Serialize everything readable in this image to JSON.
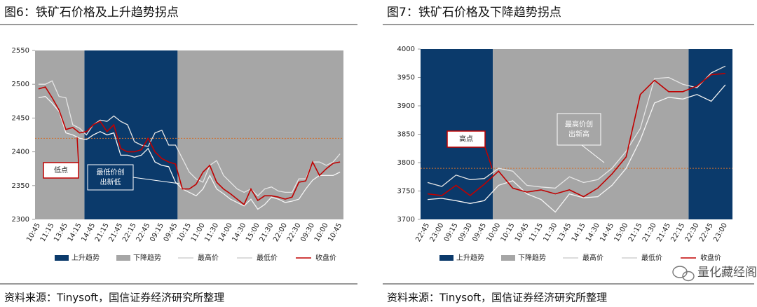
{
  "chart_data": [
    {
      "type": "line",
      "title": "图6：铁矿石价格及上升趋势拐点",
      "source": "资料来源：Tinysoft，国信证券经济研究所整理",
      "categories": [
        "10:45",
        null,
        "11:15",
        null,
        "13:45",
        null,
        "14:15",
        null,
        "14:45",
        null,
        "21:15",
        null,
        "21:45",
        null,
        "22:15",
        null,
        "22:45",
        null,
        "09:15",
        null,
        "09:45",
        null,
        "10:15",
        null,
        "11:00",
        null,
        "11:30",
        null,
        "14:00",
        null,
        "14:30",
        null,
        "15:00",
        null,
        "21:30",
        null,
        "22:00",
        null,
        "22:30",
        null,
        "09:30",
        null,
        "10:00",
        null,
        "10:45"
      ],
      "series": [
        {
          "name": "最高价",
          "color": "#e6e6e6",
          "values": [
            2500,
            2500,
            2505,
            2482,
            2480,
            2440,
            2435,
            2425,
            2440,
            2447,
            2445,
            2453,
            2445,
            2440,
            2415,
            2410,
            2408,
            2428,
            2432,
            2410,
            2410,
            2390,
            2370,
            2360,
            2355,
            2380,
            2387,
            2365,
            2355,
            2345,
            2340,
            2345,
            2335,
            2345,
            2348,
            2342,
            2340,
            2340,
            2360,
            2360,
            2385,
            2385,
            2380,
            2385,
            2397
          ]
        },
        {
          "name": "最低价",
          "color": "#f4f4f4",
          "values": [
            2480,
            2482,
            2472,
            2460,
            2428,
            2425,
            2420,
            2418,
            2425,
            2430,
            2425,
            2428,
            2395,
            2395,
            2392,
            2395,
            2405,
            2385,
            2380,
            2378,
            2355,
            2345,
            2340,
            2335,
            2345,
            2365,
            2345,
            2338,
            2330,
            2325,
            2320,
            2330,
            2315,
            2322,
            2333,
            2330,
            2325,
            2327,
            2330,
            2345,
            2358,
            2365,
            2365,
            2365,
            2370
          ]
        },
        {
          "name": "收盘价",
          "color": "#c00000",
          "values": [
            2493,
            2496,
            2480,
            2462,
            2433,
            2436,
            2428,
            2430,
            2440,
            2445,
            2430,
            2440,
            2405,
            2400,
            2400,
            2403,
            2420,
            2400,
            2390,
            2385,
            2382,
            2345,
            2345,
            2352,
            2370,
            2380,
            2355,
            2345,
            2338,
            2330,
            2322,
            2345,
            2328,
            2335,
            2335,
            2333,
            2330,
            2333,
            2355,
            2357,
            2385,
            2365,
            2375,
            2383,
            2385
          ]
        }
      ],
      "bands": [
        {
          "name": "上升趋势",
          "color": "#0b3a6b",
          "spans": [
            [
              6.7,
              20.3
            ]
          ]
        },
        {
          "name": "下降趋势",
          "color": "#a6a6a6",
          "spans": [
            [
              -0.5,
              6.7
            ],
            [
              20.3,
              44.5
            ]
          ]
        }
      ],
      "reference_line": 2420,
      "reference_color": "#d07030",
      "annotations": [
        {
          "text": "低点",
          "style": "point"
        },
        {
          "lines": [
            "最低价创",
            "出新低"
          ],
          "style": "note"
        }
      ],
      "ylim": [
        2300,
        2550
      ],
      "yticks": [
        2300,
        2350,
        2400,
        2450,
        2500,
        2550
      ]
    },
    {
      "type": "line",
      "title": "图7：铁矿石价格及下降趋势拐点",
      "source": "资料来源：Tinysoft，国信证券经济研究所整理",
      "categories": [
        "22:45",
        "23:00",
        "09:15",
        "09:30",
        "09:45",
        "10:00",
        "10:15",
        "10:45",
        "11:15",
        "11:30",
        "13:45",
        "14:15",
        "14:30",
        "14:45",
        "15:00",
        "21:15",
        "21:30",
        "21:45",
        "22:15",
        "22:30",
        "22:45",
        "23:00"
      ],
      "series": [
        {
          "name": "最高价",
          "color": "#e6e6e6",
          "values": [
            3765,
            3758,
            3778,
            3770,
            3772,
            3790,
            3785,
            3760,
            3757,
            3755,
            3775,
            3765,
            3770,
            3790,
            3820,
            3860,
            3948,
            3950,
            3938,
            3932,
            3958,
            3970
          ]
        },
        {
          "name": "最低价",
          "color": "#f4f4f4",
          "values": [
            3735,
            3737,
            3733,
            3728,
            3733,
            3760,
            3768,
            3745,
            3735,
            3713,
            3745,
            3738,
            3740,
            3760,
            3790,
            3840,
            3905,
            3915,
            3912,
            3920,
            3908,
            3937
          ]
        },
        {
          "name": "收盘价",
          "color": "#c00000",
          "values": [
            3745,
            3742,
            3760,
            3742,
            3762,
            3785,
            3755,
            3748,
            3752,
            3745,
            3752,
            3740,
            3755,
            3780,
            3810,
            3920,
            3945,
            3925,
            3925,
            3935,
            3955,
            3957
          ]
        }
      ],
      "bands": [
        {
          "name": "上升趋势",
          "color": "#0b3a6b",
          "spans": [
            [
              -0.5,
              4.6
            ],
            [
              18.4,
              21.5
            ]
          ]
        },
        {
          "name": "下降趋势",
          "color": "#a6a6a6",
          "spans": [
            [
              4.6,
              18.4
            ]
          ]
        }
      ],
      "reference_line": 3790,
      "reference_color": "#d07030",
      "annotations": [
        {
          "text": "高点",
          "style": "point"
        },
        {
          "lines": [
            "最高价创",
            "出新高"
          ],
          "style": "note"
        }
      ],
      "ylim": [
        3700,
        4000
      ],
      "yticks": [
        3700,
        3750,
        3800,
        3850,
        3900,
        3950,
        4000
      ]
    }
  ],
  "watermark": "量化藏经阁"
}
